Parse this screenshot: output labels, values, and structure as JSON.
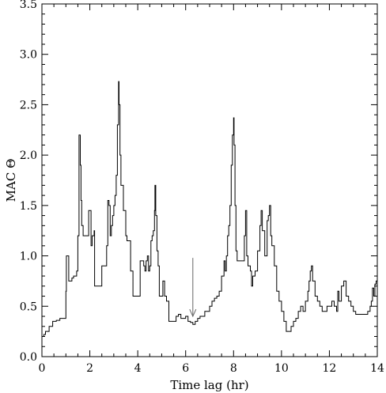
{
  "chart_data": {
    "type": "line",
    "title": "",
    "xlabel": "Time lag (hr)",
    "ylabel": "MAC Θ",
    "xlim": [
      0,
      14
    ],
    "ylim": [
      0,
      3.5
    ],
    "xticks": [
      0,
      2,
      4,
      6,
      8,
      10,
      12,
      14
    ],
    "xtick_labels": [
      "0",
      "2",
      "4",
      "6",
      "8",
      "10",
      "12",
      "14"
    ],
    "yticks": [
      0.0,
      0.5,
      1.0,
      1.5,
      2.0,
      2.5,
      3.0,
      3.5
    ],
    "ytick_labels": [
      "0.0",
      "0.5",
      "1.0",
      "1.5",
      "2.0",
      "2.5",
      "3.0",
      "3.5"
    ],
    "grid": false,
    "line_color": "#000000",
    "series": [
      {
        "x": [
          0.0,
          0.08,
          0.15,
          0.3,
          0.45,
          0.6,
          0.75,
          1.0,
          1.02,
          1.12,
          1.22,
          1.25,
          1.32,
          1.45,
          1.5,
          1.55,
          1.6,
          1.63,
          1.66,
          1.72,
          1.8,
          1.95,
          2.05,
          2.1,
          2.18,
          2.2,
          2.3,
          2.35,
          2.4,
          2.5,
          2.7,
          2.75,
          2.8,
          2.85,
          2.9,
          2.95,
          3.0,
          3.05,
          3.1,
          3.15,
          3.2,
          3.22,
          3.26,
          3.3,
          3.4,
          3.5,
          3.55,
          3.6,
          3.7,
          3.8,
          3.9,
          4.0,
          4.1,
          4.2,
          4.25,
          4.3,
          4.35,
          4.4,
          4.45,
          4.5,
          4.55,
          4.6,
          4.65,
          4.7,
          4.72,
          4.75,
          4.8,
          4.85,
          4.9,
          5.0,
          5.05,
          5.1,
          5.12,
          5.2,
          5.3,
          5.4,
          5.5,
          5.6,
          5.7,
          5.8,
          5.9,
          6.0,
          6.1,
          6.2,
          6.3,
          6.4,
          6.5,
          6.6,
          6.7,
          6.8,
          6.9,
          7.0,
          7.1,
          7.2,
          7.3,
          7.4,
          7.5,
          7.6,
          7.65,
          7.7,
          7.75,
          7.8,
          7.85,
          7.9,
          7.95,
          8.0,
          8.02,
          8.06,
          8.1,
          8.15,
          8.2,
          8.3,
          8.4,
          8.45,
          8.5,
          8.55,
          8.6,
          8.7,
          8.75,
          8.8,
          8.9,
          9.0,
          9.1,
          9.15,
          9.2,
          9.3,
          9.4,
          9.45,
          9.5,
          9.55,
          9.6,
          9.7,
          9.8,
          9.9,
          10.0,
          10.1,
          10.2,
          10.3,
          10.4,
          10.5,
          10.6,
          10.7,
          10.8,
          10.9,
          11.0,
          11.1,
          11.15,
          11.2,
          11.25,
          11.3,
          11.4,
          11.5,
          11.6,
          11.7,
          11.8,
          11.9,
          12.0,
          12.1,
          12.2,
          12.3,
          12.35,
          12.4,
          12.5,
          12.55,
          12.6,
          12.7,
          12.8,
          12.9,
          13.0,
          13.1,
          13.2,
          13.3,
          13.4,
          13.5,
          13.6,
          13.7,
          13.75,
          13.8,
          13.85,
          13.9,
          13.95,
          14.0
        ],
        "y": [
          0.2,
          0.22,
          0.25,
          0.3,
          0.35,
          0.36,
          0.38,
          0.65,
          1.0,
          0.75,
          0.75,
          0.78,
          0.8,
          0.85,
          1.2,
          2.2,
          1.9,
          1.55,
          1.3,
          1.2,
          1.2,
          1.45,
          1.1,
          1.2,
          1.25,
          0.7,
          0.7,
          0.7,
          0.7,
          0.9,
          1.1,
          1.55,
          1.5,
          1.2,
          1.3,
          1.4,
          1.5,
          1.6,
          1.8,
          2.3,
          2.73,
          2.5,
          2.0,
          1.7,
          1.45,
          1.2,
          1.15,
          1.15,
          0.85,
          0.6,
          0.6,
          0.6,
          0.95,
          0.95,
          0.9,
          0.85,
          0.95,
          1.0,
          0.85,
          0.9,
          1.15,
          1.2,
          1.25,
          1.45,
          1.7,
          1.4,
          1.05,
          0.9,
          0.6,
          0.6,
          0.75,
          0.75,
          0.6,
          0.55,
          0.35,
          0.35,
          0.35,
          0.4,
          0.42,
          0.38,
          0.38,
          0.4,
          0.35,
          0.34,
          0.32,
          0.35,
          0.38,
          0.4,
          0.4,
          0.45,
          0.45,
          0.5,
          0.55,
          0.58,
          0.6,
          0.65,
          0.8,
          0.95,
          0.85,
          1.0,
          1.2,
          1.3,
          1.5,
          1.9,
          2.2,
          2.37,
          2.1,
          1.5,
          1.05,
          0.95,
          0.95,
          0.95,
          0.95,
          1.2,
          1.45,
          1.0,
          0.9,
          0.85,
          0.7,
          0.8,
          0.85,
          1.05,
          1.3,
          1.45,
          1.25,
          1.0,
          1.35,
          1.4,
          1.5,
          1.2,
          1.1,
          0.9,
          0.65,
          0.55,
          0.45,
          0.35,
          0.25,
          0.25,
          0.3,
          0.35,
          0.38,
          0.45,
          0.5,
          0.45,
          0.55,
          0.65,
          0.75,
          0.85,
          0.9,
          0.75,
          0.6,
          0.55,
          0.5,
          0.45,
          0.45,
          0.5,
          0.5,
          0.55,
          0.5,
          0.45,
          0.65,
          0.55,
          0.7,
          0.7,
          0.75,
          0.6,
          0.55,
          0.5,
          0.45,
          0.42,
          0.42,
          0.42,
          0.42,
          0.42,
          0.45,
          0.5,
          0.55,
          0.68,
          0.6,
          0.72,
          0.75,
          0.7
        ]
      }
    ],
    "annotation": {
      "type": "arrow",
      "direction": "down",
      "x": 6.3,
      "y_start": 0.98,
      "y_end": 0.4,
      "color": "#666666"
    }
  }
}
